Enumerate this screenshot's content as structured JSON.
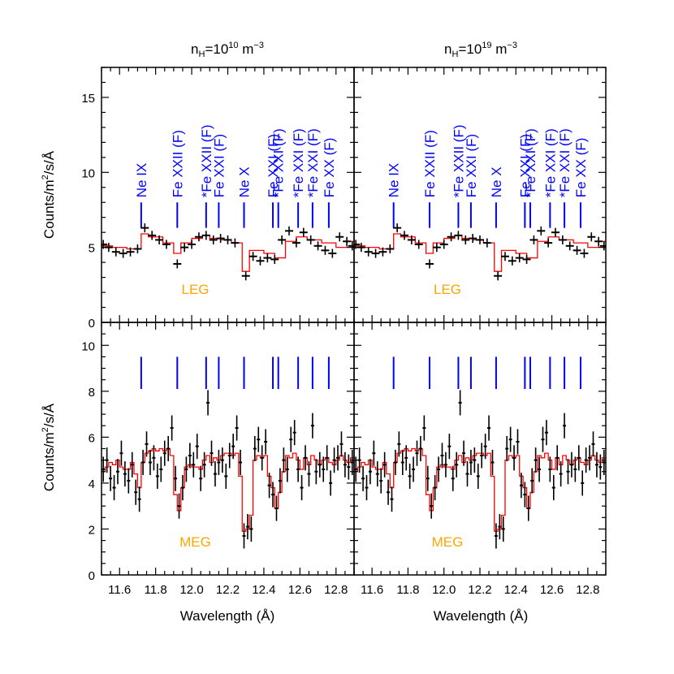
{
  "figure": {
    "columns": [
      {
        "title_base": "n",
        "title_sub": "H",
        "title_mid": "=10",
        "title_exp": "10",
        "title_unit": " m",
        "title_unit_exp": "−3"
      },
      {
        "title_base": "n",
        "title_sub": "H",
        "title_mid": "=10",
        "title_exp": "19",
        "title_unit": " m",
        "title_unit_exp": "−3"
      }
    ],
    "ylabel_top": {
      "pre": "Counts/m",
      "exp": "2",
      "post": "/s/Å"
    },
    "ylabel_bottom": {
      "pre": "Counts/m",
      "exp": "2",
      "post": "/s/Å"
    },
    "xlabel": "Wavelength (Å)",
    "panel_labels": [
      "LEG",
      "MEG"
    ],
    "colors": {
      "data": "#000000",
      "model": "#ff0000",
      "lines": "#0000ff",
      "label": "#ffa500",
      "axes": "#000000"
    }
  },
  "chart_data": {
    "type": "line",
    "xlim": [
      11.5,
      12.9
    ],
    "x_ticks": [
      11.6,
      11.8,
      12.0,
      12.2,
      12.4,
      12.6,
      12.8
    ],
    "x_tick_labels": [
      "11.6",
      "11.8",
      "12.0",
      "12.2",
      "12.4",
      "12.6",
      "12.8"
    ],
    "line_ids": [
      {
        "label": "Ne IX",
        "x": 11.72
      },
      {
        "label": "Fe XXII (F)",
        "x": 11.92
      },
      {
        "label": "*Fe XXII (F)",
        "x": 12.08
      },
      {
        "label": "Fe XXI (F)",
        "x": 12.15
      },
      {
        "label": "Ne X",
        "x": 12.29
      },
      {
        "label": "Fe XXI (F)",
        "x": 12.45
      },
      {
        "label": "*Fe XXI (F)",
        "x": 12.48
      },
      {
        "label": "*Fe XXI (F)",
        "x": 12.59
      },
      {
        "label": "*Fe XXI (F)",
        "x": 12.67
      },
      {
        "label": "Fe XX (F)",
        "x": 12.76
      }
    ],
    "rows": [
      {
        "instrument": "LEG",
        "ylim": [
          0,
          17
        ],
        "y_ticks": [
          0,
          5,
          10,
          15
        ],
        "y_tick_labels": [
          "0",
          "5",
          "10",
          "15"
        ],
        "marker_y": [
          6.3,
          8.0
        ],
        "data": {
          "x": [
            11.51,
            11.54,
            11.58,
            11.62,
            11.66,
            11.7,
            11.74,
            11.78,
            11.82,
            11.86,
            11.92,
            11.96,
            12.0,
            12.04,
            12.08,
            12.12,
            12.16,
            12.2,
            12.24,
            12.3,
            12.34,
            12.38,
            12.42,
            12.46,
            12.5,
            12.54,
            12.58,
            12.62,
            12.66,
            12.7,
            12.74,
            12.78,
            12.82,
            12.86,
            12.89
          ],
          "y": [
            5.2,
            5.0,
            4.7,
            4.6,
            4.7,
            4.9,
            6.3,
            5.8,
            5.5,
            5.2,
            3.9,
            5.0,
            5.2,
            5.7,
            5.8,
            5.5,
            5.6,
            5.5,
            5.3,
            3.1,
            4.4,
            4.1,
            4.3,
            4.2,
            5.5,
            6.1,
            5.3,
            6.0,
            5.5,
            5.1,
            4.8,
            4.6,
            5.7,
            5.4,
            5.1
          ],
          "err": [
            0.3,
            0.3,
            0.3,
            0.3,
            0.3,
            0.3,
            0.3,
            0.3,
            0.3,
            0.3,
            0.3,
            0.3,
            0.3,
            0.3,
            0.3,
            0.3,
            0.3,
            0.3,
            0.3,
            0.3,
            0.3,
            0.3,
            0.3,
            0.3,
            0.3,
            0.3,
            0.3,
            0.3,
            0.3,
            0.3,
            0.3,
            0.3,
            0.3,
            0.3,
            0.3
          ]
        },
        "model": {
          "edges": [
            11.5,
            11.56,
            11.64,
            11.72,
            11.76,
            11.84,
            11.9,
            11.94,
            12.0,
            12.06,
            12.1,
            12.16,
            12.22,
            12.28,
            12.32,
            12.4,
            12.46,
            12.52,
            12.58,
            12.64,
            12.72,
            12.8,
            12.86,
            12.9
          ],
          "values": [
            5.1,
            5.0,
            4.9,
            5.9,
            5.7,
            5.3,
            4.6,
            5.3,
            5.6,
            5.8,
            5.6,
            5.5,
            5.3,
            3.4,
            4.8,
            4.6,
            4.3,
            5.4,
            5.7,
            5.5,
            5.3,
            5.0,
            5.4,
            5.5
          ]
        }
      },
      {
        "instrument": "MEG",
        "ylim": [
          0,
          11
        ],
        "y_ticks": [
          0,
          2,
          4,
          6,
          8,
          10
        ],
        "y_tick_labels": [
          "0",
          "2",
          "4",
          "6",
          "8",
          "10"
        ],
        "marker_y": [
          8.1,
          9.5
        ],
        "data": {
          "x": [
            11.51,
            11.53,
            11.55,
            11.57,
            11.59,
            11.61,
            11.63,
            11.65,
            11.67,
            11.69,
            11.71,
            11.73,
            11.75,
            11.77,
            11.79,
            11.81,
            11.83,
            11.85,
            11.87,
            11.89,
            11.91,
            11.93,
            11.95,
            11.97,
            11.99,
            12.01,
            12.03,
            12.05,
            12.07,
            12.09,
            12.11,
            12.13,
            12.15,
            12.17,
            12.19,
            12.21,
            12.23,
            12.25,
            12.27,
            12.29,
            12.31,
            12.33,
            12.35,
            12.37,
            12.39,
            12.41,
            12.43,
            12.45,
            12.47,
            12.49,
            12.51,
            12.53,
            12.55,
            12.57,
            12.59,
            12.61,
            12.63,
            12.65,
            12.67,
            12.69,
            12.71,
            12.73,
            12.75,
            12.77,
            12.79,
            12.81,
            12.83,
            12.85,
            12.87,
            12.89
          ],
          "y": [
            4.6,
            5.0,
            4.2,
            3.8,
            4.5,
            5.3,
            4.4,
            4.1,
            4.8,
            3.6,
            3.3,
            4.9,
            5.7,
            4.9,
            5.1,
            4.3,
            4.6,
            5.3,
            5.5,
            6.4,
            4.2,
            3.0,
            3.8,
            4.6,
            5.2,
            4.8,
            5.6,
            4.2,
            4.8,
            7.5,
            5.3,
            4.4,
            4.9,
            5.0,
            4.3,
            5.2,
            5.6,
            6.4,
            4.9,
            1.7,
            2.1,
            2.0,
            5.5,
            5.9,
            5.1,
            5.8,
            3.9,
            3.5,
            2.9,
            4.1,
            5.0,
            4.6,
            5.9,
            6.2,
            4.6,
            3.8,
            5.1,
            4.4,
            6.5,
            4.5,
            4.8,
            4.6,
            5.1,
            4.0,
            5.0,
            5.1,
            5.7,
            4.8,
            4.7,
            4.9
          ],
          "err": [
            0.55,
            0.55,
            0.55,
            0.55,
            0.55,
            0.55,
            0.55,
            0.55,
            0.55,
            0.55,
            0.55,
            0.55,
            0.55,
            0.55,
            0.55,
            0.55,
            0.55,
            0.55,
            0.55,
            0.55,
            0.55,
            0.55,
            0.55,
            0.55,
            0.55,
            0.55,
            0.55,
            0.55,
            0.55,
            0.55,
            0.55,
            0.55,
            0.55,
            0.55,
            0.55,
            0.55,
            0.55,
            0.55,
            0.55,
            0.55,
            0.55,
            0.55,
            0.55,
            0.55,
            0.55,
            0.55,
            0.55,
            0.55,
            0.55,
            0.55,
            0.55,
            0.55,
            0.55,
            0.55,
            0.55,
            0.55,
            0.55,
            0.55,
            0.55,
            0.55,
            0.55,
            0.55,
            0.55,
            0.55,
            0.55,
            0.55,
            0.55,
            0.55,
            0.55,
            0.55
          ]
        },
        "model": {
          "edges": [
            11.5,
            11.52,
            11.54,
            11.56,
            11.58,
            11.6,
            11.62,
            11.64,
            11.66,
            11.68,
            11.7,
            11.72,
            11.74,
            11.76,
            11.78,
            11.8,
            11.82,
            11.84,
            11.86,
            11.88,
            11.9,
            11.92,
            11.94,
            11.96,
            11.98,
            12.0,
            12.02,
            12.04,
            12.06,
            12.08,
            12.1,
            12.12,
            12.14,
            12.16,
            12.18,
            12.2,
            12.22,
            12.24,
            12.26,
            12.28,
            12.3,
            12.32,
            12.34,
            12.36,
            12.38,
            12.4,
            12.42,
            12.44,
            12.46,
            12.48,
            12.5,
            12.52,
            12.54,
            12.56,
            12.58,
            12.6,
            12.62,
            12.64,
            12.66,
            12.68,
            12.7,
            12.72,
            12.74,
            12.76,
            12.78,
            12.8,
            12.82,
            12.84,
            12.86,
            12.88,
            12.9
          ],
          "values": [
            4.5,
            4.7,
            4.9,
            4.8,
            5.0,
            4.7,
            4.6,
            4.6,
            4.9,
            4.4,
            3.8,
            4.9,
            5.3,
            5.4,
            5.5,
            5.4,
            5.5,
            5.4,
            5.5,
            5.2,
            3.5,
            2.8,
            3.8,
            4.7,
            4.8,
            4.7,
            4.7,
            4.6,
            5.0,
            5.2,
            4.9,
            5.1,
            5.0,
            5.2,
            5.3,
            5.3,
            5.2,
            5.3,
            4.3,
            1.9,
            2.0,
            2.6,
            5.0,
            5.2,
            5.1,
            5.2,
            4.3,
            3.8,
            2.9,
            3.6,
            4.5,
            5.2,
            5.1,
            5.3,
            5.0,
            4.6,
            5.1,
            4.8,
            5.2,
            5.0,
            4.8,
            5.0,
            5.1,
            4.9,
            4.8,
            5.0,
            5.2,
            5.0,
            4.9,
            5.1
          ]
        }
      }
    ]
  }
}
